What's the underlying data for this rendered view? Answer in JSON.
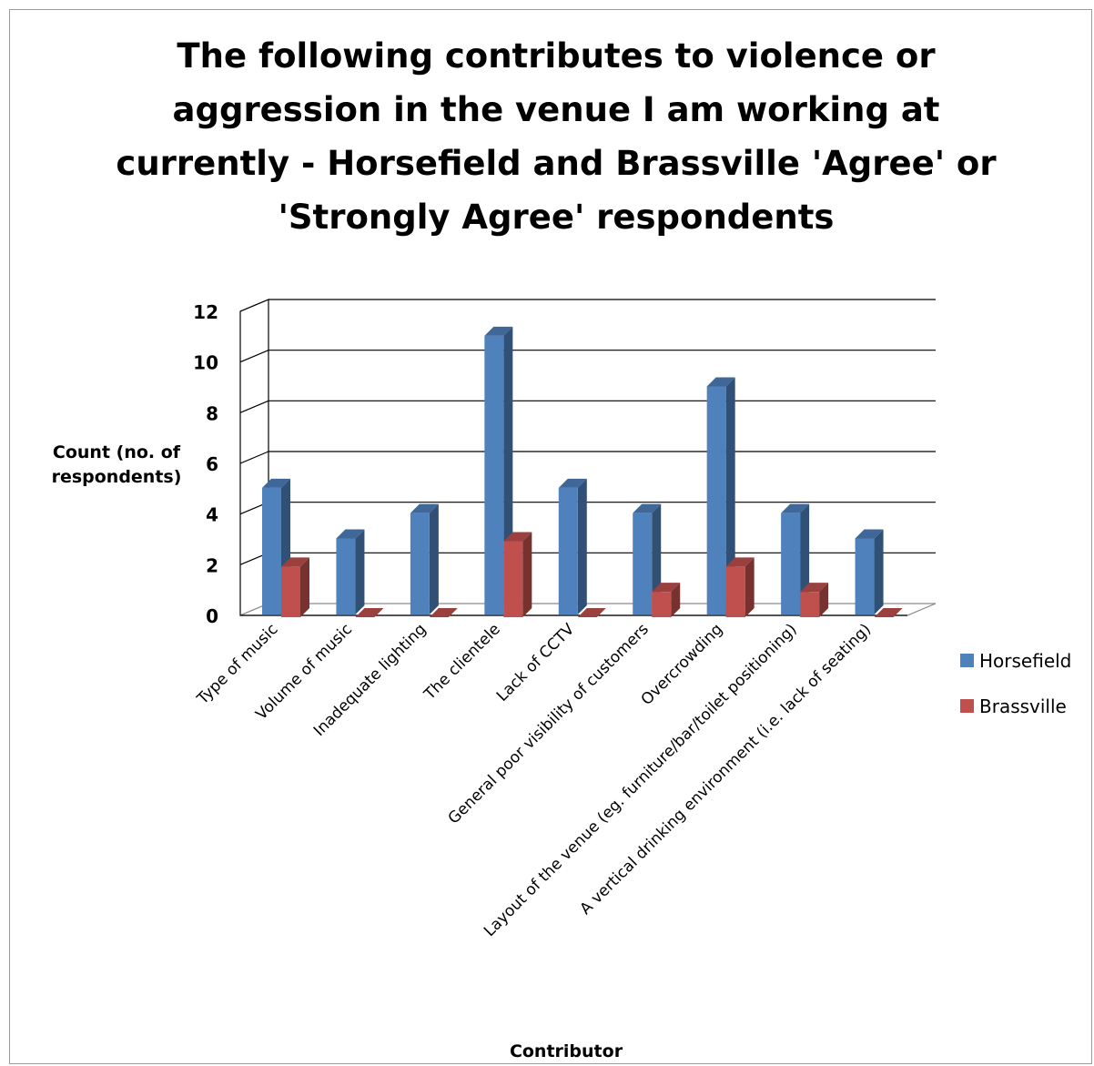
{
  "chart_data": {
    "type": "bar",
    "title": "The following contributes to violence or aggression in the venue I am working at currently - Horsefield and Brassville 'Agree' or 'Strongly Agree' respondents",
    "title_lines": [
      "The following contributes to violence or",
      "aggression in the venue I am working at",
      "currently - Horsefield and Brassville 'Agree' or",
      "'Strongly Agree' respondents"
    ],
    "xlabel": "Contributor",
    "ylabel": "Count (no. of respondents)",
    "ylabel_lines": [
      "Count (no. of",
      "respondents)"
    ],
    "ylim": [
      0,
      12
    ],
    "yticks": [
      0,
      2,
      4,
      6,
      8,
      10,
      12
    ],
    "grid": true,
    "legend_position": "right",
    "categories": [
      "Type of music",
      "Volume of music",
      "Inadequate lighting",
      "The clientele",
      "Lack of CCTV",
      "General poor visibility of customers",
      "Overcrowding",
      "Layout of the venue (eg. furniture/bar/toilet positioning)",
      "A vertical drinking environment (i.e. lack of seating)"
    ],
    "series": [
      {
        "name": "Horsefield",
        "color": "#4f81bd",
        "values": [
          5,
          3,
          4,
          11,
          5,
          4,
          9,
          4,
          3
        ]
      },
      {
        "name": "Brassville",
        "color": "#c0504d",
        "values": [
          2,
          0,
          0,
          3,
          0,
          1,
          2,
          1,
          0
        ]
      }
    ]
  }
}
